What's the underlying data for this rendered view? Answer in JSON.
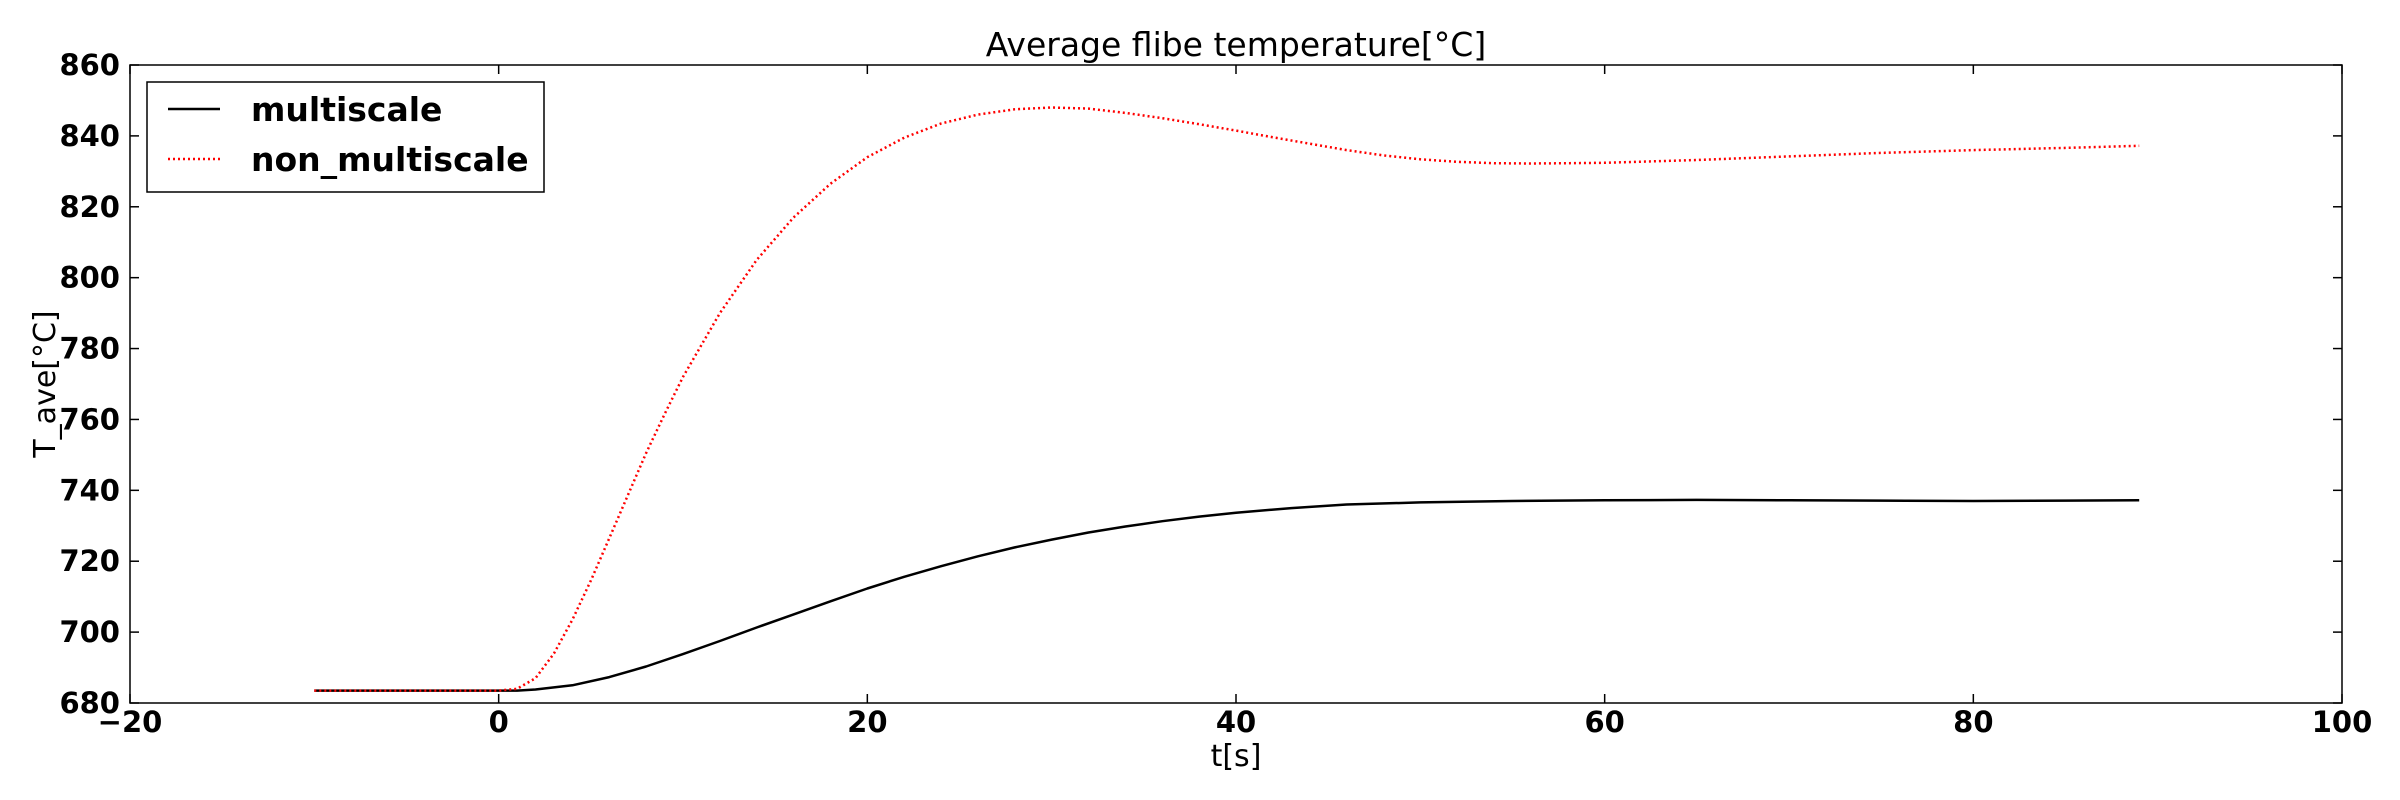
{
  "chart_data": {
    "type": "line",
    "title": "Average flibe temperature[°C]",
    "xlabel": "t[s]",
    "ylabel": "T_ave[°C]",
    "xlim": [
      -20,
      100
    ],
    "ylim": [
      680,
      860
    ],
    "xticks": [
      -20,
      0,
      20,
      40,
      60,
      80,
      100
    ],
    "yticks": [
      680,
      700,
      720,
      740,
      760,
      780,
      800,
      820,
      840,
      860
    ],
    "grid": false,
    "legend_position": "top-left",
    "series": [
      {
        "name": "multiscale",
        "color": "#000000",
        "style": "solid",
        "x": [
          -10,
          0,
          1,
          2,
          4,
          6,
          8,
          10,
          12,
          14,
          16,
          18,
          20,
          22,
          24,
          26,
          28,
          30,
          32,
          34,
          36,
          38,
          40,
          43,
          46,
          50,
          55,
          60,
          65,
          70,
          75,
          80,
          85,
          89
        ],
        "y": [
          683.5,
          683.5,
          683.5,
          683.8,
          685.0,
          687.3,
          690.3,
          693.8,
          697.5,
          701.3,
          705.0,
          708.7,
          712.3,
          715.6,
          718.6,
          721.4,
          723.9,
          726.1,
          728.1,
          729.8,
          731.3,
          732.6,
          733.7,
          735.0,
          736.0,
          736.6,
          737.0,
          737.2,
          737.3,
          737.2,
          737.1,
          737.0,
          737.1,
          737.2
        ]
      },
      {
        "name": "non_multiscale",
        "color": "#ff0000",
        "style": "dotted",
        "x": [
          -10,
          0,
          1,
          2,
          3,
          4,
          5,
          6,
          7,
          8,
          9,
          10,
          12,
          14,
          16,
          18,
          20,
          22,
          24,
          26,
          28,
          30,
          32,
          34,
          36,
          38,
          40,
          42,
          44,
          46,
          48,
          50,
          52,
          54,
          56,
          58,
          60,
          65,
          70,
          75,
          80,
          85,
          89
        ],
        "y": [
          683.5,
          683.5,
          684.0,
          687.0,
          694.0,
          703.5,
          714.5,
          726.5,
          738.5,
          750.5,
          761.5,
          772.0,
          790.0,
          805.0,
          817.0,
          826.5,
          834.0,
          839.5,
          843.5,
          846.0,
          847.5,
          848.0,
          847.7,
          846.5,
          845.0,
          843.3,
          841.5,
          839.6,
          837.8,
          836.0,
          834.5,
          833.4,
          832.7,
          832.3,
          832.2,
          832.3,
          832.4,
          833.2,
          834.2,
          835.2,
          836.0,
          836.6,
          837.2
        ]
      }
    ]
  }
}
